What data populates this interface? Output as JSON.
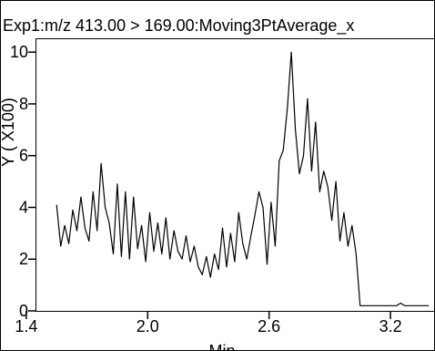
{
  "chart_data": {
    "type": "line",
    "title": "Exp1:m/z 413.00 > 169.00:Moving3PtAverage_x",
    "xlabel": "Min",
    "ylabel": "Y ( X100)",
    "xlim": [
      1.45,
      3.42
    ],
    "ylim": [
      0,
      10.5
    ],
    "xticks": [
      1.4,
      2.0,
      2.6,
      3.2
    ],
    "xtick_labels": [
      "1.4",
      "2.0",
      "2.6",
      "3.2"
    ],
    "yticks": [
      0,
      2,
      4,
      6,
      8,
      10
    ],
    "ytick_labels": [
      "0",
      "2",
      "4",
      "6",
      "8",
      "10"
    ],
    "grid": false,
    "line_color": "#000000",
    "series": [
      {
        "x": [
          1.55,
          1.57,
          1.59,
          1.61,
          1.63,
          1.65,
          1.67,
          1.69,
          1.71,
          1.73,
          1.75,
          1.77,
          1.79,
          1.81,
          1.83,
          1.85,
          1.87,
          1.89,
          1.91,
          1.93,
          1.95,
          1.97,
          1.99,
          2.01,
          2.03,
          2.05,
          2.07,
          2.09,
          2.11,
          2.13,
          2.15,
          2.17,
          2.19,
          2.21,
          2.23,
          2.25,
          2.27,
          2.29,
          2.31,
          2.33,
          2.35,
          2.37,
          2.39,
          2.41,
          2.43,
          2.45,
          2.47,
          2.49,
          2.51,
          2.53,
          2.55,
          2.57,
          2.59,
          2.61,
          2.63,
          2.65,
          2.67,
          2.69,
          2.71,
          2.73,
          2.75,
          2.77,
          2.79,
          2.81,
          2.83,
          2.85,
          2.87,
          2.89,
          2.91,
          2.93,
          2.95,
          2.97,
          2.99,
          3.01,
          3.03,
          3.05,
          3.07,
          3.09,
          3.11,
          3.13,
          3.15,
          3.17,
          3.19,
          3.21,
          3.23,
          3.25,
          3.27,
          3.29,
          3.31,
          3.33,
          3.35,
          3.37,
          3.39
        ],
        "y": [
          4.1,
          2.5,
          3.3,
          2.6,
          3.9,
          3.1,
          4.4,
          3.2,
          2.7,
          4.6,
          3.1,
          5.7,
          4.0,
          3.4,
          2.2,
          4.9,
          2.1,
          4.6,
          2.0,
          4.4,
          2.4,
          3.3,
          1.9,
          3.8,
          2.3,
          3.4,
          2.2,
          3.6,
          2.0,
          3.1,
          2.3,
          2.0,
          2.9,
          1.9,
          2.5,
          1.7,
          1.4,
          2.1,
          1.3,
          2.2,
          1.6,
          3.2,
          1.7,
          3.0,
          1.9,
          3.8,
          2.6,
          2.0,
          2.9,
          3.7,
          4.6,
          4.0,
          1.8,
          4.2,
          2.5,
          5.8,
          6.2,
          7.8,
          10.0,
          7.0,
          5.3,
          6.0,
          8.2,
          5.4,
          7.3,
          4.6,
          5.4,
          4.8,
          3.5,
          5.0,
          2.7,
          3.8,
          2.5,
          3.3,
          2.2,
          0.2,
          0.2,
          0.2,
          0.2,
          0.2,
          0.2,
          0.2,
          0.2,
          0.2,
          0.2,
          0.3,
          0.2,
          0.2,
          0.2,
          0.2,
          0.2,
          0.2,
          0.2
        ]
      }
    ]
  }
}
